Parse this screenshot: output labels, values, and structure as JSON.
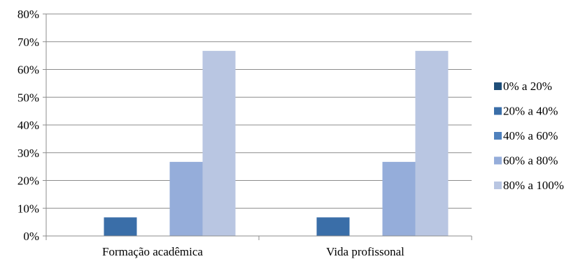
{
  "chart_data": {
    "type": "bar",
    "title": "",
    "xlabel": "",
    "ylabel": "",
    "categories": [
      "Formação acadêmica",
      "Vida profissonal"
    ],
    "series": [
      {
        "name": "0% a 20%",
        "values": [
          0,
          0
        ],
        "color": "#1f4e79"
      },
      {
        "name": "20% a 40%",
        "values": [
          6.7,
          6.7
        ],
        "color": "#3a6ea8"
      },
      {
        "name": "40% a 60%",
        "values": [
          0,
          0
        ],
        "color": "#4f81bd"
      },
      {
        "name": "60% a 80%",
        "values": [
          26.7,
          26.7
        ],
        "color": "#95adda"
      },
      {
        "name": "80% a 100%",
        "values": [
          66.7,
          66.7
        ],
        "color": "#b9c6e2"
      }
    ],
    "ylim": [
      0,
      80
    ],
    "yticks": [
      "0%",
      "10%",
      "20%",
      "30%",
      "40%",
      "50%",
      "60%",
      "70%",
      "80%"
    ],
    "grid": true,
    "legend_position": "right"
  }
}
